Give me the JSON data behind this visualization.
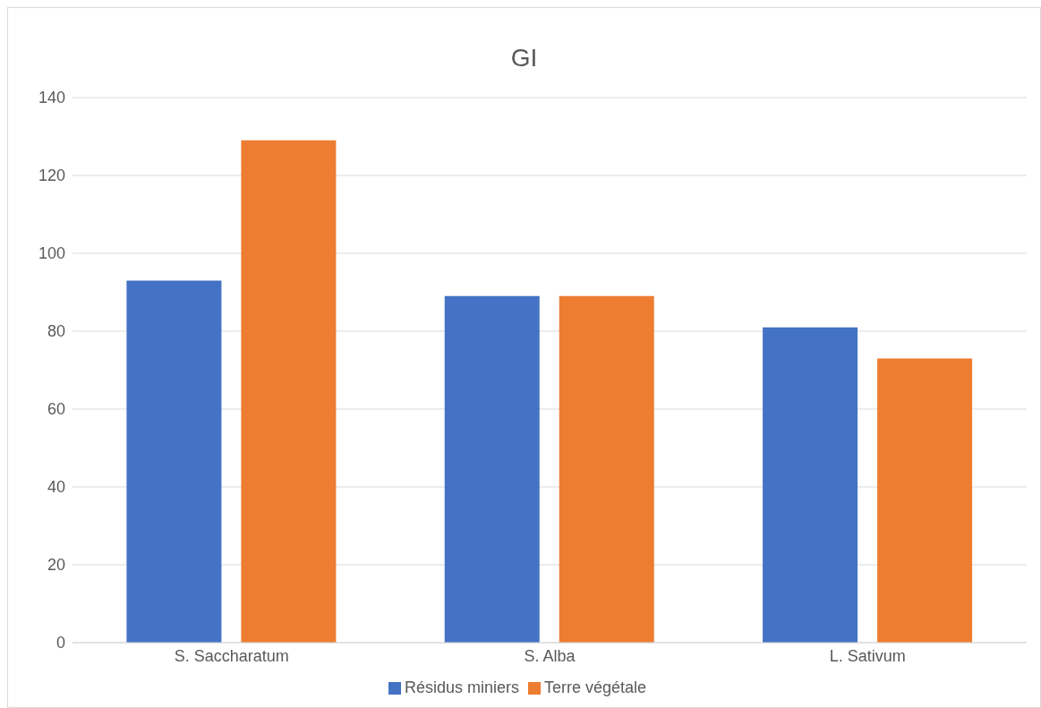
{
  "chart_data": {
    "type": "bar",
    "title": "GI",
    "categories": [
      "S. Saccharatum",
      "S. Alba",
      "L. Sativum"
    ],
    "series": [
      {
        "name": "Résidus miniers",
        "color": "#4472c4",
        "values": [
          93,
          89,
          81
        ]
      },
      {
        "name": "Terre végétale",
        "color": "#ed7d31",
        "values": [
          129,
          89,
          73
        ]
      }
    ],
    "ylim": [
      0,
      140
    ],
    "yticks": [
      0,
      20,
      40,
      60,
      80,
      100,
      120,
      140
    ],
    "grid": "y",
    "legend": "bottom"
  }
}
